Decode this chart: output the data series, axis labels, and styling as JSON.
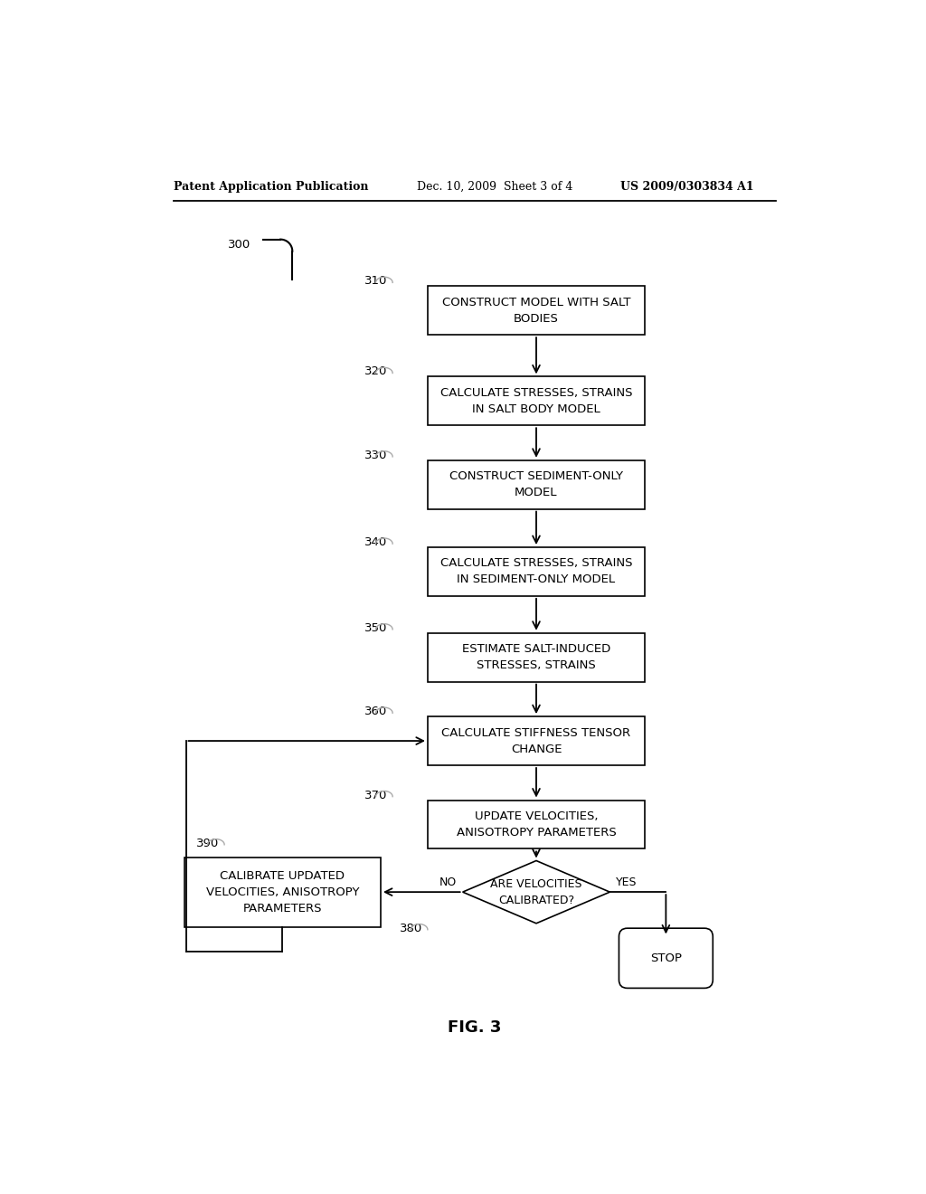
{
  "bg_color": "#ffffff",
  "header_left": "Patent Application Publication",
  "header_center": "Dec. 10, 2009  Sheet 3 of 4",
  "header_right": "US 2009/0303834 A1",
  "figure_label": "FIG. 3",
  "boxes": [
    {
      "id": "310",
      "text": "CONSTRUCT MODEL WITH SALT\nBODIES"
    },
    {
      "id": "320",
      "text": "CALCULATE STRESSES, STRAINS\nIN SALT BODY MODEL"
    },
    {
      "id": "330",
      "text": "CONSTRUCT SEDIMENT-ONLY\nMODEL"
    },
    {
      "id": "340",
      "text": "CALCULATE STRESSES, STRAINS\nIN SEDIMENT-ONLY MODEL"
    },
    {
      "id": "350",
      "text": "ESTIMATE SALT-INDUCED\nSTRESSES, STRAINS"
    },
    {
      "id": "360",
      "text": "CALCULATE STIFFNESS TENSOR\nCHANGE"
    },
    {
      "id": "370",
      "text": "UPDATE VELOCITIES,\nANISOTROPY PARAMETERS"
    },
    {
      "id": "380",
      "text": "ARE VELOCITIES\nCALIBRATED?"
    },
    {
      "id": "390",
      "text": "CALIBRATE UPDATED\nVELOCITIES, ANISOTROPY\nPARAMETERS"
    },
    {
      "id": "STOP",
      "text": "STOP"
    }
  ]
}
